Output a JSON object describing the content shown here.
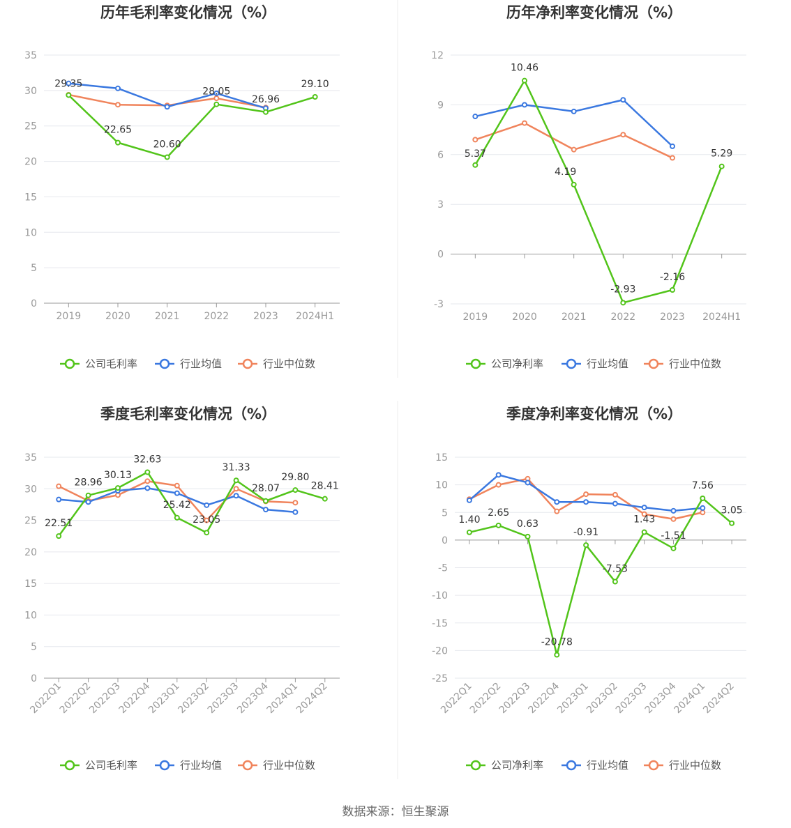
{
  "colors": {
    "company": "#52c41a",
    "avg": "#3a78e0",
    "median": "#f0845c",
    "grid": "#e6e8ee",
    "axis": "#999999"
  },
  "source": "数据来源：恒生聚源",
  "chart_data": [
    {
      "type": "line",
      "title": "历年毛利率变化情况（%）",
      "categories": [
        "2019",
        "2020",
        "2021",
        "2022",
        "2023",
        "2024H1"
      ],
      "ylim": [
        0,
        35
      ],
      "yticks": [
        0,
        5,
        10,
        15,
        20,
        25,
        30,
        35
      ],
      "xlabel_rotated": false,
      "grid": true,
      "legend": "bottom",
      "series": [
        {
          "name": "公司毛利率",
          "key": "company",
          "values": [
            29.35,
            22.65,
            20.6,
            28.05,
            26.96,
            29.1
          ],
          "labels": [
            "29.35",
            "22.65",
            "20.60",
            "28.05",
            "26.96",
            "29.10"
          ]
        },
        {
          "name": "行业均值",
          "key": "avg",
          "values": [
            31.0,
            30.3,
            27.7,
            29.6,
            27.5,
            null
          ]
        },
        {
          "name": "行业中位数",
          "key": "median",
          "values": [
            29.4,
            28.0,
            27.9,
            28.9,
            27.6,
            null
          ]
        }
      ]
    },
    {
      "type": "line",
      "title": "历年净利率变化情况（%）",
      "categories": [
        "2019",
        "2020",
        "2021",
        "2022",
        "2023",
        "2024H1"
      ],
      "ylim": [
        -3,
        12
      ],
      "yticks": [
        -3,
        0,
        3,
        6,
        9,
        12
      ],
      "xlabel_rotated": false,
      "grid": true,
      "legend": "bottom",
      "series": [
        {
          "name": "公司净利率",
          "key": "company",
          "values": [
            5.37,
            10.46,
            4.19,
            -2.93,
            -2.16,
            5.29
          ],
          "labels": [
            "5.37",
            "10.46",
            "4.19",
            "-2.93",
            "-2.16",
            "5.29"
          ]
        },
        {
          "name": "行业均值",
          "key": "avg",
          "values": [
            8.3,
            9.0,
            8.6,
            9.3,
            6.5,
            null
          ]
        },
        {
          "name": "行业中位数",
          "key": "median",
          "values": [
            6.9,
            7.9,
            6.3,
            7.2,
            5.8,
            null
          ]
        }
      ]
    },
    {
      "type": "line",
      "title": "季度毛利率变化情况（%）",
      "categories": [
        "2022Q1",
        "2022Q2",
        "2022Q3",
        "2022Q4",
        "2023Q1",
        "2023Q2",
        "2023Q3",
        "2023Q4",
        "2024Q1",
        "2024Q2"
      ],
      "ylim": [
        0,
        35
      ],
      "yticks": [
        0,
        5,
        10,
        15,
        20,
        25,
        30,
        35
      ],
      "xlabel_rotated": true,
      "grid": true,
      "legend": "bottom",
      "series": [
        {
          "name": "公司毛利率",
          "key": "company",
          "values": [
            22.51,
            28.96,
            30.13,
            32.63,
            25.42,
            23.05,
            31.33,
            28.07,
            29.8,
            28.41
          ],
          "labels": [
            "22.51",
            "28.96",
            "30.13",
            "32.63",
            "25.42",
            "23.05",
            "31.33",
            "28.07",
            "29.80",
            "28.41"
          ]
        },
        {
          "name": "行业均值",
          "key": "avg",
          "values": [
            28.3,
            27.9,
            29.7,
            30.1,
            29.3,
            27.4,
            28.9,
            26.7,
            26.3,
            null
          ]
        },
        {
          "name": "行业中位数",
          "key": "median",
          "values": [
            30.4,
            28.1,
            29.0,
            31.2,
            30.5,
            25.0,
            30.0,
            28.0,
            27.8,
            null
          ]
        }
      ]
    },
    {
      "type": "line",
      "title": "季度净利率变化情况（%）",
      "categories": [
        "2022Q1",
        "2022Q2",
        "2022Q3",
        "2022Q4",
        "2023Q1",
        "2023Q2",
        "2023Q3",
        "2023Q4",
        "2024Q1",
        "2024Q2"
      ],
      "ylim": [
        -25,
        15
      ],
      "yticks": [
        -25,
        -20,
        -15,
        -10,
        -5,
        0,
        5,
        10,
        15
      ],
      "xlabel_rotated": true,
      "grid": true,
      "legend": "bottom",
      "series": [
        {
          "name": "公司净利率",
          "key": "company",
          "values": [
            1.4,
            2.65,
            0.63,
            -20.78,
            -0.91,
            -7.53,
            1.43,
            -1.51,
            7.56,
            3.05
          ],
          "labels": [
            "1.40",
            "2.65",
            "0.63",
            "-20.78",
            "-0.91",
            "-7.53",
            "1.43",
            "-1.51",
            "7.56",
            "3.05"
          ]
        },
        {
          "name": "行业均值",
          "key": "avg",
          "values": [
            7.2,
            11.8,
            10.4,
            6.9,
            6.9,
            6.6,
            5.9,
            5.3,
            5.8,
            null
          ]
        },
        {
          "name": "行业中位数",
          "key": "median",
          "values": [
            7.4,
            10.0,
            11.1,
            5.2,
            8.3,
            8.2,
            4.7,
            3.8,
            5.0,
            null
          ]
        }
      ]
    }
  ]
}
